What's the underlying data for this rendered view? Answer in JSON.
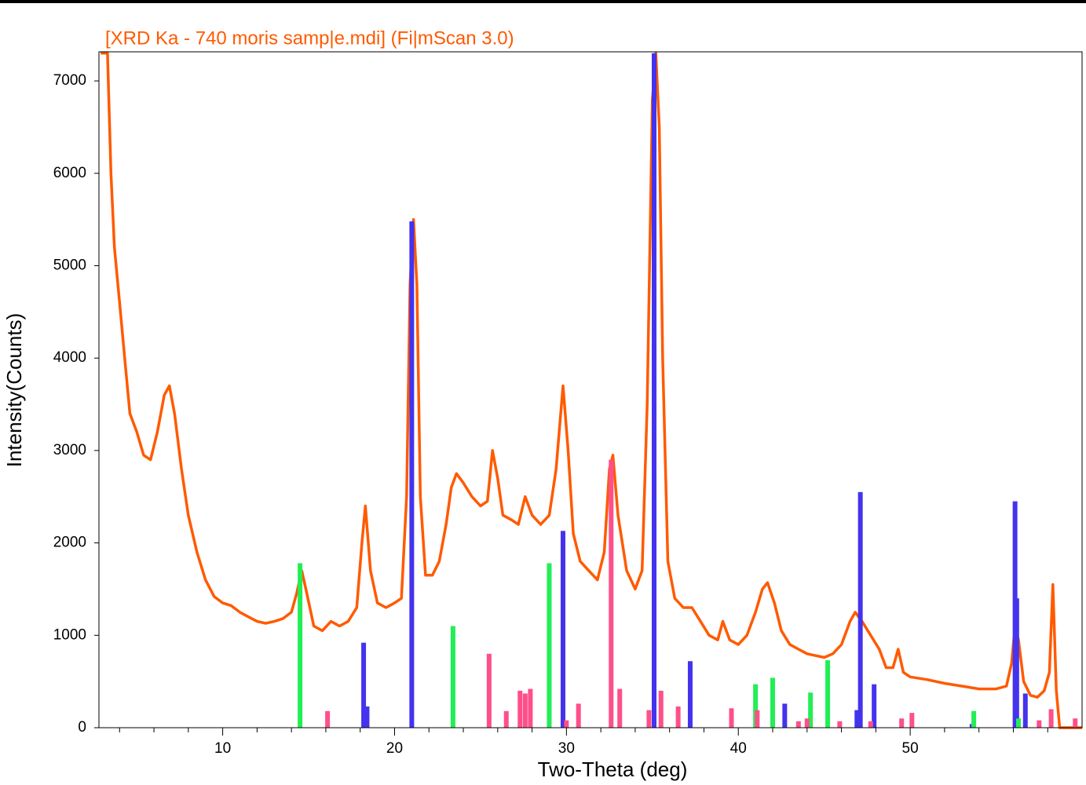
{
  "chart_data": {
    "type": "line",
    "title": "[XRD Ka - 740 moris samp|e.mdi] (Fi|mScan 3.0)",
    "x_label": "Two-Theta (deg)",
    "y_label": "Intensity(Counts)",
    "xlim": [
      2.8,
      60
    ],
    "ylim": [
      0,
      7315
    ],
    "xticks": [
      10,
      20,
      30,
      40,
      50
    ],
    "xminorticks": [
      4,
      6,
      8,
      12,
      14,
      16,
      18,
      22,
      24,
      26,
      28,
      32,
      34,
      36,
      38,
      42,
      44,
      46,
      48,
      52,
      54,
      56,
      58
    ],
    "yticks": [
      0,
      1000,
      2000,
      3000,
      4000,
      5000,
      6000,
      7000
    ],
    "title_color": "#ff5a00",
    "series": [
      {
        "style": "line",
        "color": "#ff5a00",
        "x": [
          2.9,
          3.3,
          3.5,
          3.7,
          4.0,
          4.3,
          4.6,
          5.0,
          5.4,
          5.8,
          6.2,
          6.6,
          6.9,
          7.2,
          7.6,
          8.0,
          8.5,
          9.0,
          9.5,
          10.0,
          10.5,
          11.0,
          11.5,
          12.0,
          12.5,
          13.0,
          13.5,
          14.0,
          14.3,
          14.6,
          14.9,
          15.3,
          15.8,
          16.3,
          16.8,
          17.3,
          17.8,
          18.1,
          18.3,
          18.6,
          19.0,
          19.5,
          20.0,
          20.4,
          20.7,
          20.9,
          21.1,
          21.3,
          21.5,
          21.8,
          22.2,
          22.6,
          23.0,
          23.3,
          23.6,
          24.0,
          24.5,
          25.0,
          25.4,
          25.7,
          26.0,
          26.3,
          26.8,
          27.2,
          27.6,
          28.0,
          28.5,
          29.0,
          29.4,
          29.8,
          30.1,
          30.4,
          30.8,
          31.3,
          31.8,
          32.2,
          32.5,
          32.7,
          33.0,
          33.5,
          34.0,
          34.4,
          34.7,
          35.0,
          35.2,
          35.4,
          35.6,
          35.9,
          36.3,
          36.8,
          37.3,
          37.8,
          38.3,
          38.8,
          39.1,
          39.5,
          40.0,
          40.5,
          41.0,
          41.4,
          41.7,
          42.1,
          42.5,
          43.0,
          43.5,
          44.0,
          44.5,
          45.0,
          45.5,
          46.0,
          46.5,
          46.8,
          47.2,
          47.7,
          48.2,
          48.6,
          49.0,
          49.3,
          49.6,
          50.0,
          51.0,
          52.0,
          53.0,
          54.0,
          55.0,
          55.6,
          55.9,
          56.1,
          56.3,
          56.6,
          57.0,
          57.4,
          57.8,
          58.1,
          58.3,
          58.5,
          58.7,
          60.0
        ],
        "values": [
          7300,
          7300,
          6000,
          5200,
          4600,
          4000,
          3400,
          3200,
          2950,
          2900,
          3200,
          3600,
          3700,
          3400,
          2800,
          2300,
          1900,
          1600,
          1420,
          1350,
          1320,
          1250,
          1200,
          1150,
          1130,
          1150,
          1180,
          1250,
          1450,
          1700,
          1450,
          1100,
          1050,
          1150,
          1100,
          1150,
          1300,
          2000,
          2400,
          1700,
          1350,
          1300,
          1350,
          1400,
          2500,
          4800,
          5500,
          4800,
          2500,
          1650,
          1650,
          1800,
          2200,
          2600,
          2750,
          2650,
          2500,
          2400,
          2450,
          3000,
          2700,
          2300,
          2250,
          2200,
          2500,
          2300,
          2200,
          2300,
          2800,
          3700,
          3000,
          2100,
          1800,
          1700,
          1600,
          1900,
          2800,
          2950,
          2300,
          1700,
          1500,
          1700,
          3500,
          6800,
          7300,
          6500,
          4000,
          1800,
          1400,
          1300,
          1300,
          1150,
          1000,
          950,
          1150,
          950,
          900,
          1000,
          1250,
          1500,
          1570,
          1350,
          1050,
          900,
          850,
          800,
          780,
          760,
          800,
          900,
          1150,
          1250,
          1150,
          1000,
          850,
          650,
          650,
          850,
          600,
          550,
          520,
          480,
          450,
          420,
          420,
          450,
          700,
          1100,
          950,
          500,
          350,
          330,
          400,
          600,
          1550,
          400,
          0,
          0
        ]
      },
      {
        "style": "stick",
        "color": "#4433ee",
        "x": [
          18.2,
          18.4,
          21.0,
          29.8,
          35.1,
          37.2,
          42.7,
          46.9,
          47.1,
          47.9,
          53.6,
          56.1,
          56.2,
          56.7
        ],
        "values": [
          920,
          230,
          5480,
          2130,
          7300,
          720,
          260,
          190,
          2550,
          470,
          40,
          2450,
          1400,
          370
        ]
      },
      {
        "style": "stick",
        "color": "#22ee55",
        "x": [
          14.5,
          23.4,
          29.0,
          41.0,
          42.0,
          44.2,
          45.2,
          53.7,
          56.3
        ],
        "values": [
          1780,
          1100,
          1780,
          470,
          540,
          380,
          730,
          180,
          100
        ]
      },
      {
        "style": "stick",
        "color": "#ff4f8b",
        "x": [
          16.1,
          25.5,
          26.5,
          27.3,
          27.6,
          27.9,
          30.0,
          30.7,
          32.6,
          33.1,
          34.8,
          35.5,
          36.5,
          39.6,
          41.1,
          43.5,
          44.0,
          45.9,
          47.7,
          49.5,
          50.1,
          57.5,
          58.2,
          59.6
        ],
        "values": [
          180,
          800,
          180,
          400,
          370,
          420,
          80,
          260,
          2900,
          420,
          190,
          400,
          230,
          210,
          190,
          70,
          100,
          70,
          70,
          100,
          160,
          80,
          200,
          100
        ]
      }
    ]
  }
}
